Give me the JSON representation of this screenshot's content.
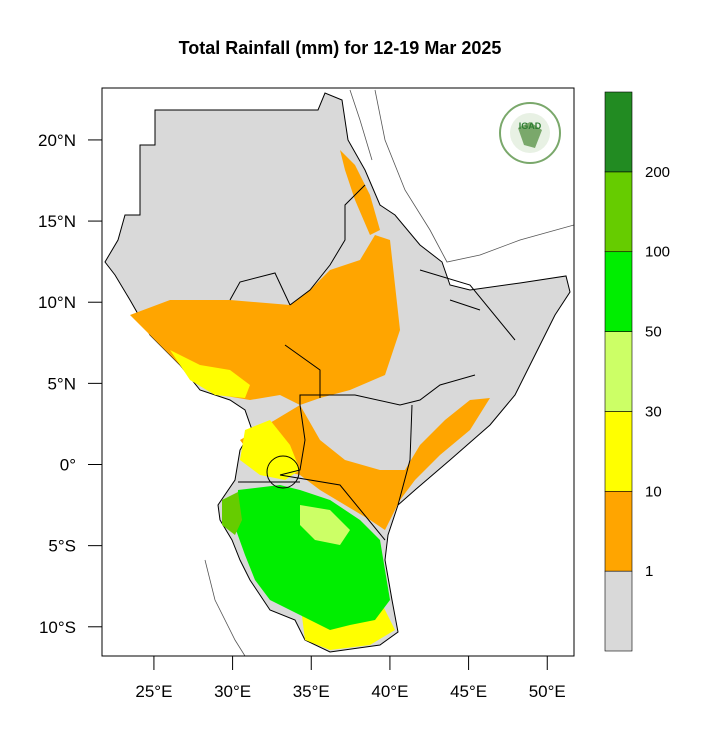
{
  "title": "Total Rainfall (mm) for 12-19 Mar 2025",
  "map": {
    "lat_labels": [
      "20°N",
      "15°N",
      "10°N",
      "5°N",
      "0°",
      "5°S",
      "10°S"
    ],
    "lat_values": [
      20,
      15,
      10,
      5,
      0,
      -5,
      -10
    ],
    "lon_labels": [
      "25°E",
      "30°E",
      "35°E",
      "40°E",
      "45°E",
      "50°E"
    ],
    "lon_values": [
      25,
      30,
      35,
      40,
      45,
      50
    ],
    "lon_range": [
      21.7,
      51.7
    ],
    "lat_range": [
      -11.8,
      23.2
    ],
    "land_color": "#d9d9d9",
    "logo_text": "IGAD"
  },
  "colorbar": {
    "labels": [
      "1",
      "10",
      "30",
      "50",
      "100",
      "200"
    ],
    "bins": [
      {
        "range": "<1",
        "color": "#d9d9d9"
      },
      {
        "range": "1-10",
        "color": "#ffa500"
      },
      {
        "range": "10-30",
        "color": "#ffff00"
      },
      {
        "range": "30-50",
        "color": "#ccff66"
      },
      {
        "range": "50-100",
        "color": "#00ee00"
      },
      {
        "range": "100-200",
        "color": "#66cc00"
      },
      {
        "range": ">200",
        "color": "#228b22"
      }
    ]
  }
}
